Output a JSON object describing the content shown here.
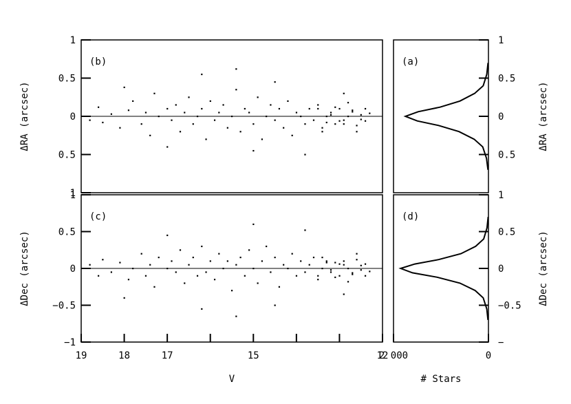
{
  "chart_data": [
    {
      "panel_label": "(b)",
      "type": "scatter",
      "ylabel": "ΔRA (arcsec)",
      "ylim": [
        -1,
        1
      ],
      "xlim": [
        19,
        12
      ],
      "y_ticks": [
        -1,
        -0.5,
        0,
        0.5,
        1
      ],
      "y_tick_labels": [
        "1",
        "0.5",
        "0",
        "0.5",
        "1"
      ],
      "x_tick_labels": [],
      "points_x": [
        18.8,
        18.6,
        18.5,
        18.3,
        18.1,
        17.9,
        17.8,
        17.6,
        17.5,
        17.4,
        17.3,
        17.2,
        17.0,
        16.9,
        16.8,
        16.7,
        16.6,
        16.5,
        16.4,
        16.3,
        16.2,
        16.1,
        16.0,
        15.9,
        15.8,
        15.7,
        15.6,
        15.5,
        15.4,
        15.3,
        15.2,
        15.1,
        15.0,
        14.9,
        14.8,
        14.7,
        14.6,
        14.5,
        14.4,
        14.3,
        14.2,
        14.1,
        14.0,
        13.9,
        13.8,
        13.7,
        13.6,
        13.5,
        13.4,
        13.3,
        13.2,
        13.1,
        13.0,
        12.9,
        12.8,
        12.7,
        12.6,
        12.5,
        12.4,
        12.3,
        13.5,
        13.3,
        13.1,
        12.9,
        12.7,
        12.5,
        13.4,
        13.2,
        13.0,
        12.8,
        12.6,
        12.4,
        14.5,
        15.0,
        16.2,
        17.0,
        18.0,
        15.4,
        13.8,
        12.9
      ],
      "points_y": [
        -0.05,
        0.12,
        -0.08,
        0.03,
        -0.15,
        0.08,
        0.2,
        -0.1,
        0.05,
        -0.25,
        0.3,
        0.0,
        0.1,
        -0.05,
        0.15,
        -0.2,
        0.05,
        0.25,
        -0.1,
        0.0,
        0.1,
        -0.3,
        0.2,
        -0.05,
        0.05,
        0.15,
        -0.15,
        0.0,
        0.35,
        -0.2,
        0.1,
        0.05,
        -0.1,
        0.25,
        -0.3,
        0.0,
        0.15,
        -0.05,
        0.1,
        -0.15,
        0.2,
        -0.25,
        0.05,
        0.0,
        -0.1,
        0.1,
        -0.05,
        0.15,
        -0.2,
        0.0,
        0.05,
        -0.1,
        0.1,
        -0.05,
        0.0,
        0.08,
        -0.12,
        0.02,
        -0.06,
        0.04,
        0.1,
        -0.08,
        0.12,
        -0.1,
        0.06,
        -0.04,
        -0.15,
        0.02,
        -0.06,
        0.18,
        -0.2,
        0.1,
        0.45,
        -0.45,
        0.55,
        -0.4,
        0.38,
        0.62,
        -0.5,
        0.3
      ]
    },
    {
      "panel_label": "(a)",
      "type": "line",
      "ylabel": "ΔRA (arcsec)",
      "ylim": [
        -1,
        1
      ],
      "y_ticks": [
        -0.5,
        0,
        0.5,
        1
      ],
      "y_tick_labels": [
        "0.5",
        "0",
        "0.5",
        "1"
      ],
      "x_tick_labels": [],
      "histogram_y": [
        -0.7,
        -0.55,
        -0.4,
        -0.3,
        -0.2,
        -0.12,
        -0.06,
        0.0,
        0.06,
        0.12,
        0.2,
        0.3,
        0.4,
        0.55,
        0.7
      ],
      "histogram_counts": [
        10,
        40,
        120,
        300,
        620,
        1050,
        1500,
        1750,
        1480,
        1020,
        600,
        290,
        110,
        35,
        8
      ]
    },
    {
      "panel_label": "(c)",
      "type": "scatter",
      "xlabel": "V",
      "ylabel": "ΔDec (arcsec)",
      "ylim": [
        -1,
        1
      ],
      "xlim": [
        19,
        12
      ],
      "y_ticks": [
        -1,
        -0.5,
        0,
        0.5,
        1
      ],
      "y_tick_labels": [
        "−1",
        "−0.5",
        "0",
        "0.5",
        "1"
      ],
      "x_ticks": [
        19,
        18,
        17,
        16,
        15,
        14,
        13,
        12
      ],
      "x_tick_labels": [
        "19",
        "18",
        "17",
        "",
        "15",
        "",
        "",
        "12"
      ],
      "points_x": [
        18.8,
        18.6,
        18.5,
        18.3,
        18.1,
        17.9,
        17.8,
        17.6,
        17.5,
        17.4,
        17.3,
        17.2,
        17.0,
        16.9,
        16.8,
        16.7,
        16.6,
        16.5,
        16.4,
        16.3,
        16.2,
        16.1,
        16.0,
        15.9,
        15.8,
        15.7,
        15.6,
        15.5,
        15.4,
        15.3,
        15.2,
        15.1,
        15.0,
        14.9,
        14.8,
        14.7,
        14.6,
        14.5,
        14.4,
        14.3,
        14.2,
        14.1,
        14.0,
        13.9,
        13.8,
        13.7,
        13.6,
        13.5,
        13.4,
        13.3,
        13.2,
        13.1,
        13.0,
        12.9,
        12.8,
        12.7,
        12.6,
        12.5,
        12.4,
        12.3,
        13.5,
        13.3,
        13.1,
        12.9,
        12.7,
        12.5,
        13.4,
        13.2,
        13.0,
        12.8,
        12.6,
        12.4,
        14.5,
        15.0,
        16.2,
        17.0,
        18.0,
        15.4,
        13.8,
        12.9
      ],
      "points_y": [
        0.05,
        -0.1,
        0.12,
        -0.05,
        0.08,
        -0.15,
        0.0,
        0.2,
        -0.1,
        0.05,
        -0.25,
        0.15,
        0.0,
        0.1,
        -0.05,
        0.25,
        -0.2,
        0.05,
        0.15,
        -0.1,
        0.3,
        -0.05,
        0.1,
        -0.15,
        0.2,
        0.0,
        0.1,
        -0.3,
        0.05,
        0.15,
        -0.1,
        0.25,
        0.0,
        -0.2,
        0.1,
        0.3,
        -0.05,
        0.15,
        -0.25,
        0.05,
        0.0,
        0.2,
        -0.1,
        0.1,
        -0.05,
        0.05,
        0.15,
        -0.15,
        0.0,
        0.1,
        -0.05,
        0.08,
        -0.1,
        0.05,
        0.0,
        -0.08,
        0.12,
        -0.02,
        0.06,
        -0.04,
        -0.1,
        0.08,
        -0.12,
        0.1,
        -0.06,
        0.04,
        0.15,
        -0.02,
        0.06,
        -0.18,
        0.2,
        -0.1,
        -0.5,
        0.6,
        -0.55,
        0.45,
        -0.4,
        -0.65,
        0.52,
        -0.35
      ]
    },
    {
      "panel_label": "(d)",
      "type": "line",
      "xlabel": "# Stars",
      "ylabel": "ΔDec (arcsec)",
      "ylim": [
        -1,
        1
      ],
      "xlim": [
        2000,
        0
      ],
      "y_ticks": [
        -1,
        -0.5,
        0,
        0.5,
        1
      ],
      "y_tick_labels": [
        "−",
        "−0.5",
        "0",
        "0.5",
        "1"
      ],
      "x_ticks": [
        2000,
        0
      ],
      "x_tick_labels": [
        "2 000",
        "0"
      ],
      "histogram_y": [
        -0.7,
        -0.55,
        -0.4,
        -0.3,
        -0.2,
        -0.12,
        -0.06,
        0.0,
        0.06,
        0.12,
        0.2,
        0.3,
        0.4,
        0.55,
        0.7
      ],
      "histogram_counts": [
        10,
        35,
        110,
        280,
        600,
        1080,
        1600,
        1850,
        1550,
        1050,
        580,
        270,
        100,
        30,
        6
      ]
    }
  ]
}
